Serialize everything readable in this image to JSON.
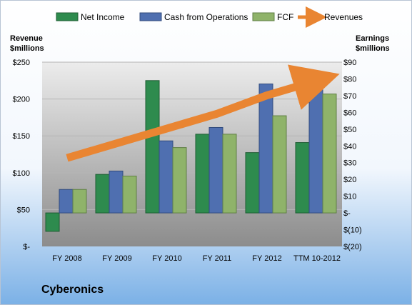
{
  "company_name": "Cyberonics",
  "colors": {
    "net_income": "#2e8b4e",
    "cash_from_operations": "#4f6fb0",
    "fcf": "#8fb36a",
    "revenues": "#e98532",
    "background_top": "#ffffff",
    "background_bottom": "#7ab0e6",
    "plot_top": "#ececec",
    "plot_bottom": "#8c8c8c"
  },
  "chart_data": {
    "type": "bar",
    "title": "",
    "categories": [
      "FY 2008",
      "FY 2009",
      "FY 2010",
      "FY 2011",
      "FY 2012",
      "TTM 10-2012"
    ],
    "series": [
      {
        "name": "Net Income",
        "axis": "right",
        "values": [
          -11,
          23,
          79,
          47,
          36,
          42
        ]
      },
      {
        "name": "Cash from Operations",
        "axis": "right",
        "values": [
          14,
          25,
          43,
          51,
          77,
          80
        ]
      },
      {
        "name": "FCF",
        "axis": "right",
        "values": [
          14,
          22,
          39,
          47,
          58,
          71
        ]
      },
      {
        "name": "Revenues",
        "axis": "left",
        "type": "line",
        "values": [
          120,
          140,
          160,
          180,
          205,
          225
        ]
      }
    ],
    "left_axis": {
      "label_line1": "Revenue",
      "label_line2": "$millions",
      "min": 0,
      "max": 250,
      "ticks": [
        0,
        50,
        100,
        150,
        200,
        250
      ],
      "tick_labels": [
        "$-",
        "$50",
        "$100",
        "$150",
        "$200",
        "$250"
      ]
    },
    "right_axis": {
      "label_line1": "Earnings",
      "label_line2": "$millions",
      "min": -20,
      "max": 90,
      "ticks": [
        -20,
        -10,
        0,
        10,
        20,
        30,
        40,
        50,
        60,
        70,
        80,
        90
      ],
      "tick_labels": [
        "$(20)",
        "$(10)",
        "$-",
        "$10",
        "$20",
        "$30",
        "$40",
        "$50",
        "$60",
        "$70",
        "$80",
        "$90"
      ]
    },
    "legend_position": "top",
    "grid": true
  }
}
